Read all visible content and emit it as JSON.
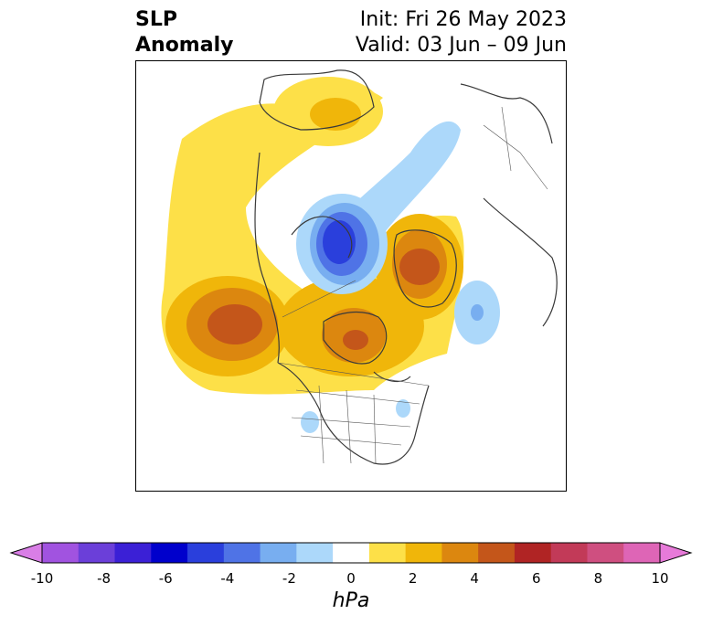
{
  "title": {
    "left_line1": "SLP",
    "left_line2": "Anomaly",
    "right_line1": "Init: Fri 26 May 2023",
    "right_line2": "Valid: 03 Jun – 09 Jun"
  },
  "colorbar": {
    "units": "hPa",
    "ticks": [
      "-10",
      "-8",
      "-6",
      "-4",
      "-2",
      "0",
      "2",
      "4",
      "6",
      "8",
      "10"
    ],
    "colors": [
      "#d97ee6",
      "#a153e0",
      "#6b3fd9",
      "#3b20d6",
      "#0000cc",
      "#2a3fdc",
      "#4f73e6",
      "#78aef0",
      "#acd8fa",
      "#ffffff",
      "#fde048",
      "#f0b60a",
      "#dc870f",
      "#c4561a",
      "#b02424",
      "#c23a58",
      "#cf4f80",
      "#de65b6",
      "#e77ad9"
    ]
  },
  "map": {
    "projection": "north-polar-stereographic",
    "region": "Northern Hemisphere / North America",
    "anomaly_features": [
      {
        "name": "positive-anomaly-north-pacific",
        "sign": "positive",
        "peak_hpa": 6
      },
      {
        "name": "positive-anomaly-hudson-bay",
        "sign": "positive",
        "peak_hpa": 5
      },
      {
        "name": "positive-anomaly-greenland",
        "sign": "positive",
        "peak_hpa": 5
      },
      {
        "name": "positive-anomaly-siberia",
        "sign": "positive",
        "peak_hpa": 3
      },
      {
        "name": "negative-anomaly-arctic-ocean",
        "sign": "negative",
        "peak_hpa": -6
      },
      {
        "name": "negative-anomaly-north-atlantic",
        "sign": "negative",
        "peak_hpa": -2
      }
    ]
  }
}
